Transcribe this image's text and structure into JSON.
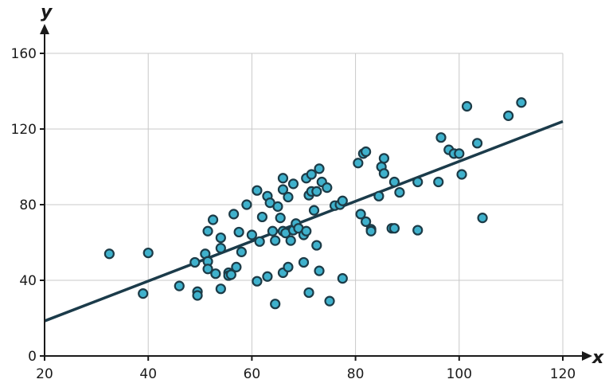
{
  "chart_data": {
    "type": "scatter",
    "title": "",
    "xlabel": "x",
    "ylabel": "y",
    "xlim": [
      20,
      120
    ],
    "ylim": [
      0,
      160
    ],
    "x_ticks": [
      "20",
      "40",
      "60",
      "80",
      "100",
      "120"
    ],
    "y_ticks": [
      "0",
      "40",
      "80",
      "120",
      "160"
    ],
    "x_tick_values": [
      20,
      40,
      60,
      80,
      100,
      120
    ],
    "y_tick_values": [
      0,
      40,
      80,
      120,
      160
    ],
    "grid": true,
    "colors": {
      "point_fill": "#3fb1cc",
      "point_stroke": "#1c3b47",
      "fit_line": "#1b3b4a"
    },
    "trend_line": {
      "x": [
        20,
        120
      ],
      "y": [
        18.5,
        124
      ]
    },
    "series": [
      {
        "points": [
          [
            32.5,
            54
          ],
          [
            39,
            33
          ],
          [
            40,
            54.5
          ],
          [
            46,
            37
          ],
          [
            49,
            49.5
          ],
          [
            49.5,
            34
          ],
          [
            49.5,
            32
          ],
          [
            51,
            54
          ],
          [
            51.5,
            50
          ],
          [
            51.5,
            66
          ],
          [
            51.5,
            46
          ],
          [
            52.5,
            72
          ],
          [
            53,
            43.5
          ],
          [
            54,
            62.5
          ],
          [
            54,
            57
          ],
          [
            54,
            35.5
          ],
          [
            55.5,
            44
          ],
          [
            55.5,
            42.5
          ],
          [
            56,
            43
          ],
          [
            56.5,
            75
          ],
          [
            57,
            47
          ],
          [
            57.5,
            65.5
          ],
          [
            58,
            55
          ],
          [
            59,
            80
          ],
          [
            60,
            64
          ],
          [
            61,
            87.5
          ],
          [
            61,
            39.5
          ],
          [
            61.5,
            60.5
          ],
          [
            62,
            73.5
          ],
          [
            63,
            84.5
          ],
          [
            63,
            42
          ],
          [
            63.5,
            81
          ],
          [
            64,
            66
          ],
          [
            64.5,
            61
          ],
          [
            64.5,
            27.5
          ],
          [
            65,
            79
          ],
          [
            65.5,
            73
          ],
          [
            66,
            88
          ],
          [
            66,
            94
          ],
          [
            66,
            66
          ],
          [
            66,
            44
          ],
          [
            66.5,
            65
          ],
          [
            67,
            84
          ],
          [
            67,
            47
          ],
          [
            67.5,
            61
          ],
          [
            68,
            91
          ],
          [
            68,
            66.5
          ],
          [
            68.5,
            70
          ],
          [
            69,
            67.5
          ],
          [
            70,
            64
          ],
          [
            70,
            49.5
          ],
          [
            70.5,
            66
          ],
          [
            70.5,
            94
          ],
          [
            71,
            85
          ],
          [
            71,
            33.5
          ],
          [
            71.5,
            87
          ],
          [
            71.5,
            96
          ],
          [
            72,
            77
          ],
          [
            72.5,
            87
          ],
          [
            72.5,
            58.5
          ],
          [
            73,
            99
          ],
          [
            73,
            45
          ],
          [
            73.5,
            92
          ],
          [
            74.5,
            89
          ],
          [
            75,
            29
          ],
          [
            76,
            79.5
          ],
          [
            77,
            80
          ],
          [
            77.5,
            82
          ],
          [
            77.5,
            41
          ],
          [
            80.5,
            102
          ],
          [
            81,
            75
          ],
          [
            81.5,
            107
          ],
          [
            82,
            108
          ],
          [
            82,
            71
          ],
          [
            83,
            67
          ],
          [
            83,
            66
          ],
          [
            84.5,
            84.5
          ],
          [
            85,
            100
          ],
          [
            85.5,
            104.5
          ],
          [
            85.5,
            96.5
          ],
          [
            87,
            67.5
          ],
          [
            87.5,
            67.5
          ],
          [
            87.5,
            92
          ],
          [
            88.5,
            86.5
          ],
          [
            92,
            66.5
          ],
          [
            92,
            92
          ],
          [
            96,
            92
          ],
          [
            96.5,
            115.5
          ],
          [
            98,
            109
          ],
          [
            99,
            107
          ],
          [
            100,
            107
          ],
          [
            100.5,
            96
          ],
          [
            101.5,
            132
          ],
          [
            103.5,
            112.5
          ],
          [
            104.5,
            73
          ],
          [
            109.5,
            127
          ],
          [
            112,
            134
          ]
        ]
      }
    ]
  }
}
